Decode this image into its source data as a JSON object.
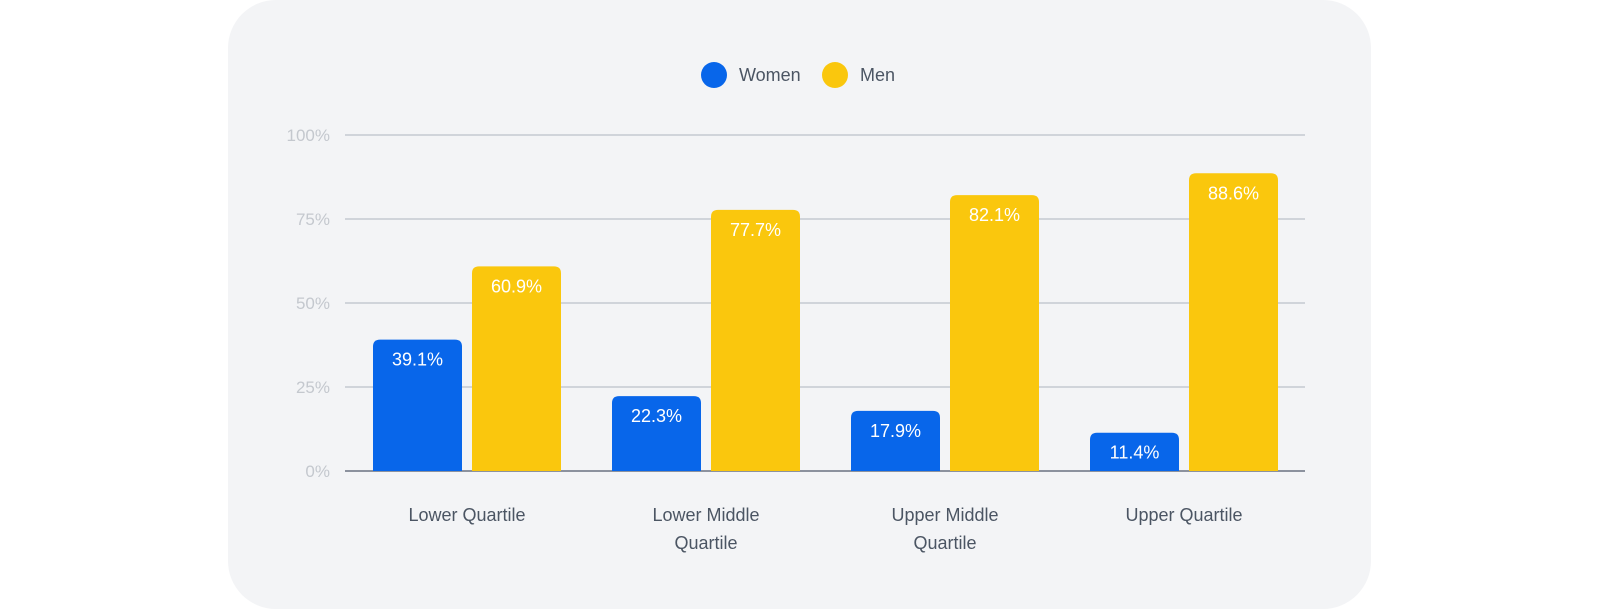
{
  "chart_data": {
    "type": "bar",
    "categories": [
      [
        "Lower Quartile"
      ],
      [
        "Lower Middle",
        "Quartile"
      ],
      [
        "Upper Middle",
        "Quartile"
      ],
      [
        "Upper Quartile"
      ]
    ],
    "series": [
      {
        "name": "Women",
        "color": "#0866ea",
        "values": [
          39.1,
          22.3,
          17.9,
          11.4
        ],
        "labels": [
          "39.1%",
          "22.3%",
          "17.9%",
          "11.4%"
        ]
      },
      {
        "name": "Men",
        "color": "#fac70d",
        "values": [
          60.9,
          77.7,
          82.1,
          88.6
        ],
        "labels": [
          "60.9%",
          "77.7%",
          "82.1%",
          "88.6%"
        ]
      }
    ],
    "ylim": [
      0,
      100
    ],
    "yticks": [
      0,
      25,
      50,
      75,
      100
    ],
    "ytick_labels": [
      "0%",
      "25%",
      "50%",
      "75%",
      "100%"
    ],
    "grid": true,
    "legend": "top-center",
    "gridline_color": "#c5c9d0",
    "baseline_color": "#6b7280"
  }
}
